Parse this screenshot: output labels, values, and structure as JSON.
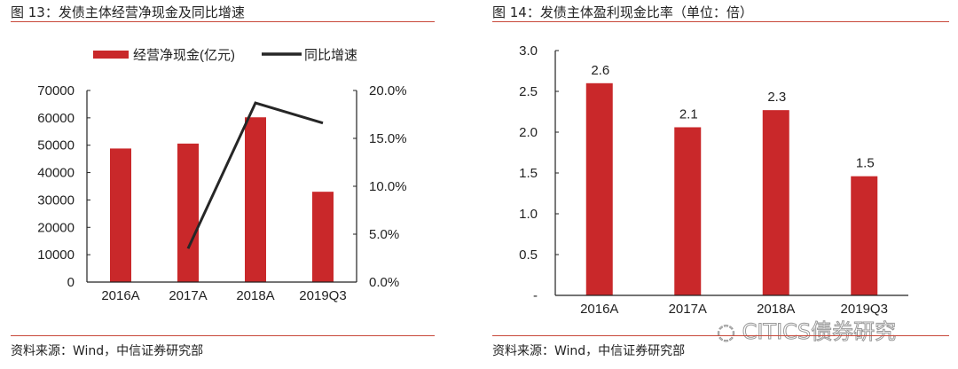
{
  "panels": {
    "left": {
      "title": "图 13：发债主体经营净现金及同比增速",
      "source": "资料来源：Wind，中信证券研究部"
    },
    "right": {
      "title": "图 14：发债主体盈利现金比率（单位：倍）",
      "source": "资料来源：Wind，中信证券研究部"
    }
  },
  "watermark": "CITICS债券研究",
  "colors": {
    "bar": "#c9282a",
    "line": "#262626",
    "rule": "#c8483a"
  },
  "chart_data": [
    {
      "type": "bar+line",
      "categories": [
        "2016A",
        "2017A",
        "2018A",
        "2019Q3"
      ],
      "series": [
        {
          "name": "经营净现金(亿元)",
          "type": "bar",
          "axis": "left",
          "values": [
            48800,
            50600,
            60200,
            33000
          ]
        },
        {
          "name": "同比增速",
          "type": "line",
          "axis": "right",
          "values": [
            null,
            3.5,
            18.7,
            16.6
          ]
        }
      ],
      "ylim_left": [
        0,
        70000
      ],
      "yticks_left": [
        "0",
        "10000",
        "20000",
        "30000",
        "40000",
        "50000",
        "60000",
        "70000"
      ],
      "ylim_right": [
        0,
        20
      ],
      "yticks_right": [
        "0.0%",
        "5.0%",
        "10.0%",
        "15.0%",
        "20.0%"
      ],
      "legend": "top",
      "grid": false
    },
    {
      "type": "bar",
      "categories": [
        "2016A",
        "2017A",
        "2018A",
        "2019Q3"
      ],
      "values": [
        2.6,
        2.06,
        2.27,
        1.46
      ],
      "data_labels": [
        "2.6",
        "2.1",
        "2.3",
        "1.5"
      ],
      "ylim": [
        0,
        3.0
      ],
      "yticks": [
        "-",
        "0.5",
        "1.0",
        "1.5",
        "2.0",
        "2.5",
        "3.0"
      ],
      "grid": false
    }
  ]
}
